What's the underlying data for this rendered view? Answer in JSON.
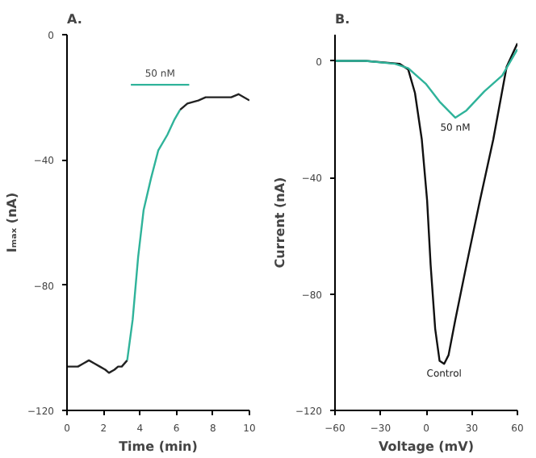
{
  "chart_data": [
    {
      "type": "line",
      "title": "A.",
      "xlabel": "Time (min)",
      "ylabel": "Iₘₐₓ (nA)",
      "xlim": [
        0,
        10
      ],
      "ylim": [
        -120,
        0
      ],
      "xticks": [
        0,
        2,
        4,
        6,
        8,
        10
      ],
      "yticks": [
        0,
        -40,
        -80,
        -120
      ],
      "grid": false,
      "marker": "none",
      "line_style": "solid",
      "series": [
        {
          "color": "#222222",
          "x": [
            0,
            0.3,
            0.6,
            0.9,
            1.2,
            1.5,
            1.8,
            2.1,
            2.3,
            2.6,
            2.8,
            3.0,
            3.3
          ],
          "values": [
            -106,
            -106,
            -106,
            -105,
            -104,
            -105,
            -106,
            -107,
            -108,
            -107,
            -106,
            -106,
            -104
          ]
        },
        {
          "color": "#2fb39a",
          "x": [
            3.3,
            3.6,
            3.9,
            4.2,
            4.6,
            5.0,
            5.5,
            5.9,
            6.2
          ],
          "values": [
            -104,
            -91,
            -71,
            -56,
            -46,
            -37,
            -32,
            -27,
            -24
          ]
        },
        {
          "color": "#222222",
          "x": [
            6.2,
            6.6,
            7.2,
            7.6,
            8.2,
            9.0,
            9.4,
            10
          ],
          "values": [
            -24,
            -22,
            -21,
            -20,
            -20,
            -20,
            -19,
            -21
          ]
        },
        {
          "color": "#2fb39a",
          "x": [
            3.5,
            6.7
          ],
          "values": [
            -16,
            -16
          ]
        }
      ],
      "annotations": [
        {
          "text": "50 nM",
          "x": 5.1,
          "y": -16
        }
      ]
    },
    {
      "type": "line",
      "title": "B.",
      "xlabel": "Voltage (mV)",
      "ylabel": "Current (nA)",
      "xlim": [
        -60,
        60
      ],
      "ylim": [
        -120,
        9
      ],
      "xticks": [
        -60,
        -30,
        0,
        30,
        60
      ],
      "yticks": [
        0,
        -40,
        -80,
        -120
      ],
      "grid": false,
      "marker": "none",
      "line_style": "solid",
      "series": [
        {
          "name": "Control",
          "color": "#111111",
          "x": [
            -60,
            -40,
            -17.6,
            -11.8,
            -7.4,
            -2.9,
            0.6,
            2.9,
            5.9,
            8.8,
            11.8,
            14.7,
            19.1,
            26.5,
            35.3,
            44.1,
            52.9,
            60
          ],
          "values": [
            0,
            0,
            -1,
            -3,
            -11,
            -27,
            -48,
            -70,
            -92,
            -103,
            -104,
            -101,
            -89,
            -70,
            -48,
            -27,
            -2,
            6
          ]
        },
        {
          "name": "50 nM",
          "color": "#2fb39a",
          "x": [
            -60,
            -40,
            -20.6,
            -11.8,
            0,
            8.8,
            19.1,
            26.5,
            38.2,
            50,
            60
          ],
          "values": [
            0,
            0,
            -1,
            -2.5,
            -8,
            -14,
            -19.5,
            -17,
            -10.5,
            -5,
            4
          ]
        }
      ]
    }
  ]
}
